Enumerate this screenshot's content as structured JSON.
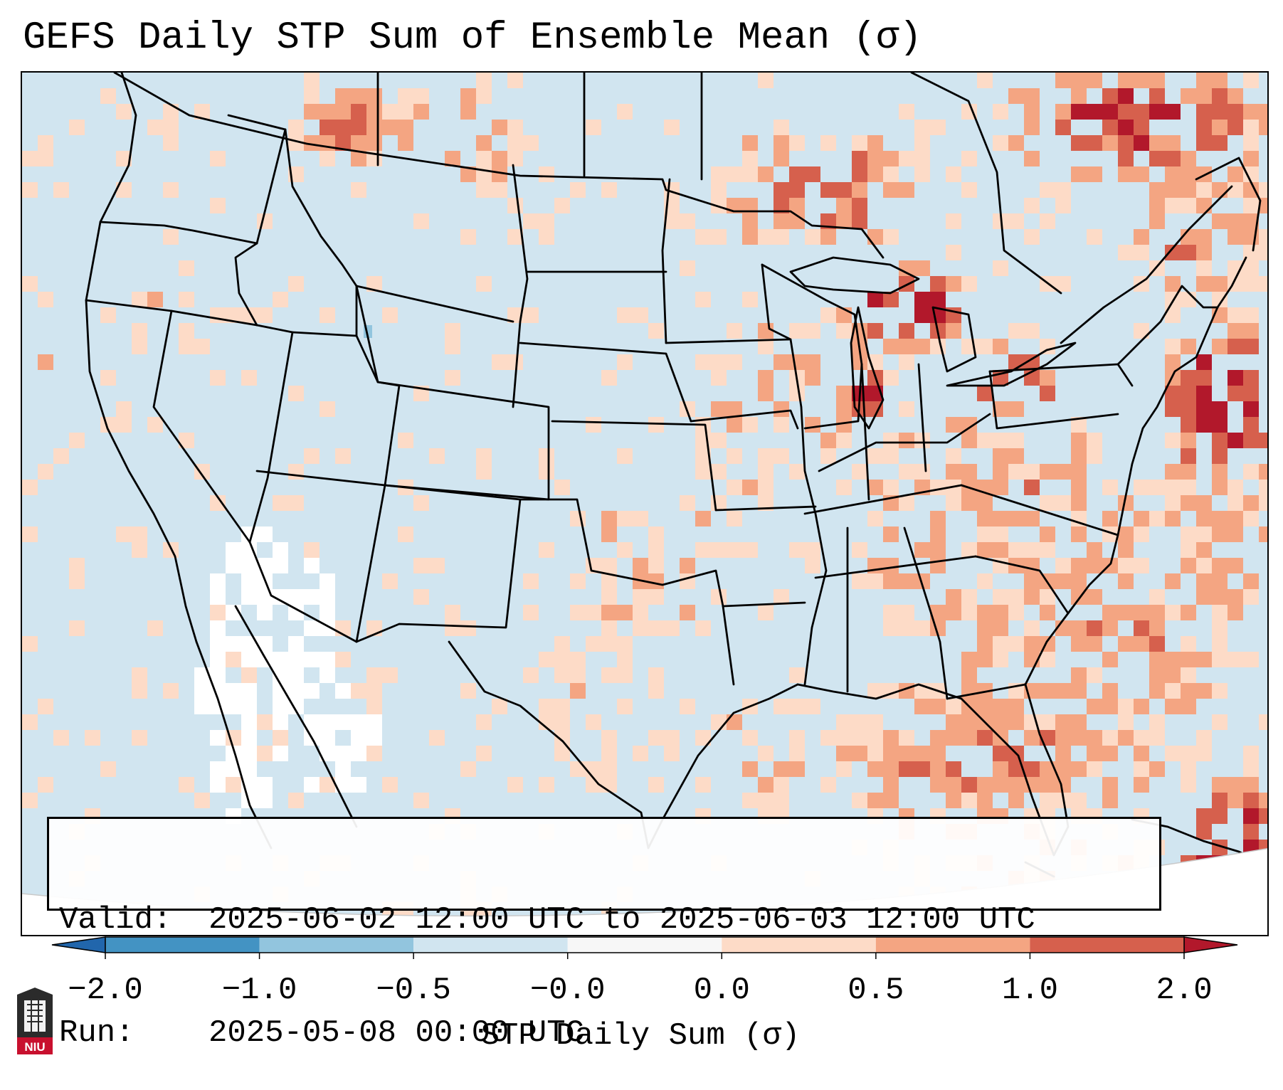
{
  "title": "GEFS Daily STP Sum of Ensemble Mean (σ)",
  "info": {
    "valid_key": "Valid:",
    "valid_value": "2025-06-02 12:00 UTC to 2025-06-03 12:00 UTC",
    "run_key": "Run:",
    "run_value": "2025-05-08 00:00 UTC"
  },
  "colorbar": {
    "label": "STP Daily Sum (σ)",
    "ticks": [
      "−2.0",
      "−1.0",
      "−0.5",
      "−0.0",
      "0.0",
      "0.5",
      "1.0",
      "2.0"
    ],
    "bins": [
      {
        "from": -2.0,
        "to": -1.0,
        "color": "#4393c3"
      },
      {
        "from": -1.0,
        "to": -0.5,
        "color": "#92c5de"
      },
      {
        "from": -0.5,
        "to": -0.0,
        "color": "#d1e5f0"
      },
      {
        "from": -0.0,
        "to": 0.0,
        "color": "#f7f7f7"
      },
      {
        "from": 0.0,
        "to": 0.5,
        "color": "#fddbc7"
      },
      {
        "from": 0.5,
        "to": 1.0,
        "color": "#f4a582"
      },
      {
        "from": 1.0,
        "to": 2.0,
        "color": "#d6604d"
      }
    ],
    "under_color": "#2166ac",
    "over_color": "#b2182b"
  },
  "map": {
    "background_color": "#d1e5f0",
    "projection": "lambert-conformal-conus",
    "colors": {
      "light": "#fddbc7",
      "medium": "#f4a582",
      "strong": "#d6604d",
      "extreme": "#b2182b",
      "white": "#ffffff",
      "blue": "#92c5de"
    }
  },
  "logo": {
    "text": "NIU"
  }
}
